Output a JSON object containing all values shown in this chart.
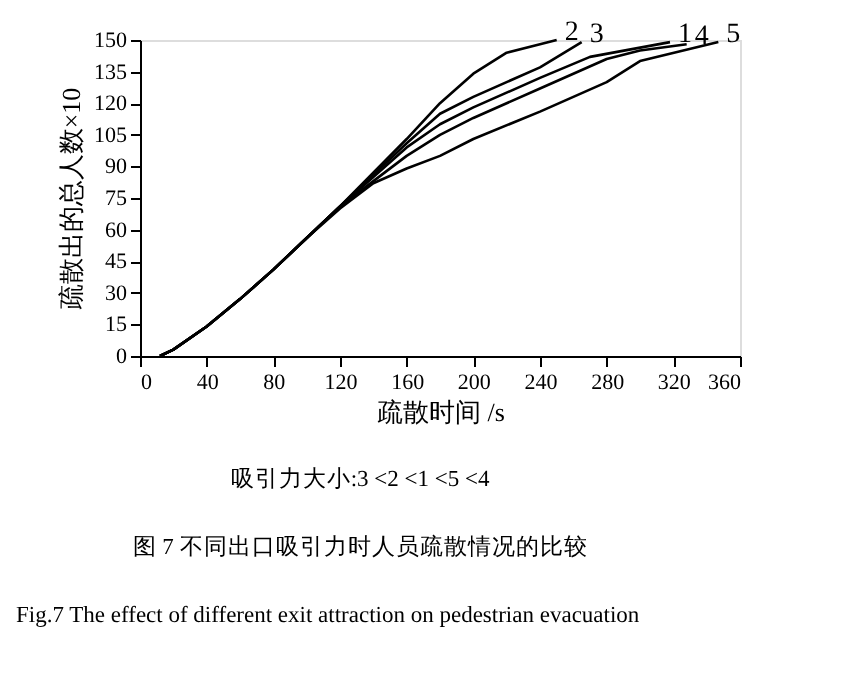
{
  "chart_data": {
    "type": "line",
    "xlabel": "疏散时间 /s",
    "ylabel": "疏散出的总人数×10",
    "xlim": [
      0,
      360
    ],
    "xticks": [
      0,
      40,
      80,
      120,
      160,
      200,
      240,
      280,
      320,
      360
    ],
    "ylim": [
      0,
      150
    ],
    "yticks": [
      0,
      15,
      30,
      45,
      60,
      75,
      90,
      105,
      120,
      135,
      150
    ],
    "grid": false,
    "marker": "none",
    "line_style": "solid",
    "series": [
      {
        "name": "2",
        "color": "#000000",
        "x": [
          12,
          20,
          40,
          60,
          80,
          100,
          120,
          140,
          160,
          180,
          200,
          220,
          240,
          250
        ],
        "values": [
          0,
          3,
          14,
          27,
          41,
          56,
          71,
          87,
          103,
          120,
          134,
          144,
          148,
          150
        ]
      },
      {
        "name": "3",
        "color": "#000000",
        "x": [
          12,
          20,
          40,
          60,
          80,
          100,
          120,
          140,
          160,
          180,
          200,
          240,
          265
        ],
        "values": [
          0,
          3,
          14,
          27,
          41,
          56,
          71,
          86,
          101,
          115,
          123,
          137,
          149
        ]
      },
      {
        "name": "1",
        "color": "#000000",
        "x": [
          12,
          20,
          40,
          60,
          80,
          100,
          120,
          140,
          160,
          180,
          200,
          240,
          270,
          318
        ],
        "values": [
          0,
          3,
          14,
          27,
          41,
          56,
          71,
          85,
          99,
          110,
          118,
          132,
          142,
          149
        ]
      },
      {
        "name": "4",
        "color": "#000000",
        "x": [
          12,
          20,
          40,
          60,
          80,
          100,
          120,
          140,
          160,
          180,
          200,
          240,
          280,
          300,
          328
        ],
        "values": [
          0,
          3,
          14,
          27,
          41,
          56,
          71,
          83,
          95,
          105,
          113,
          127,
          141,
          145,
          148
        ]
      },
      {
        "name": "5",
        "color": "#000000",
        "x": [
          12,
          20,
          40,
          60,
          80,
          100,
          120,
          140,
          160,
          180,
          200,
          240,
          280,
          300,
          347
        ],
        "values": [
          0,
          3,
          14,
          27,
          41,
          56,
          70,
          82,
          89,
          95,
          103,
          116,
          130,
          140,
          149
        ]
      }
    ],
    "annotations": [
      "吸引力大小:3 <2 <1 <5 <4",
      "图 7   不同出口吸引力时人员疏散情况的比较",
      "Fig.7   The effect of different exit attraction on pedestrian evacuation"
    ]
  }
}
